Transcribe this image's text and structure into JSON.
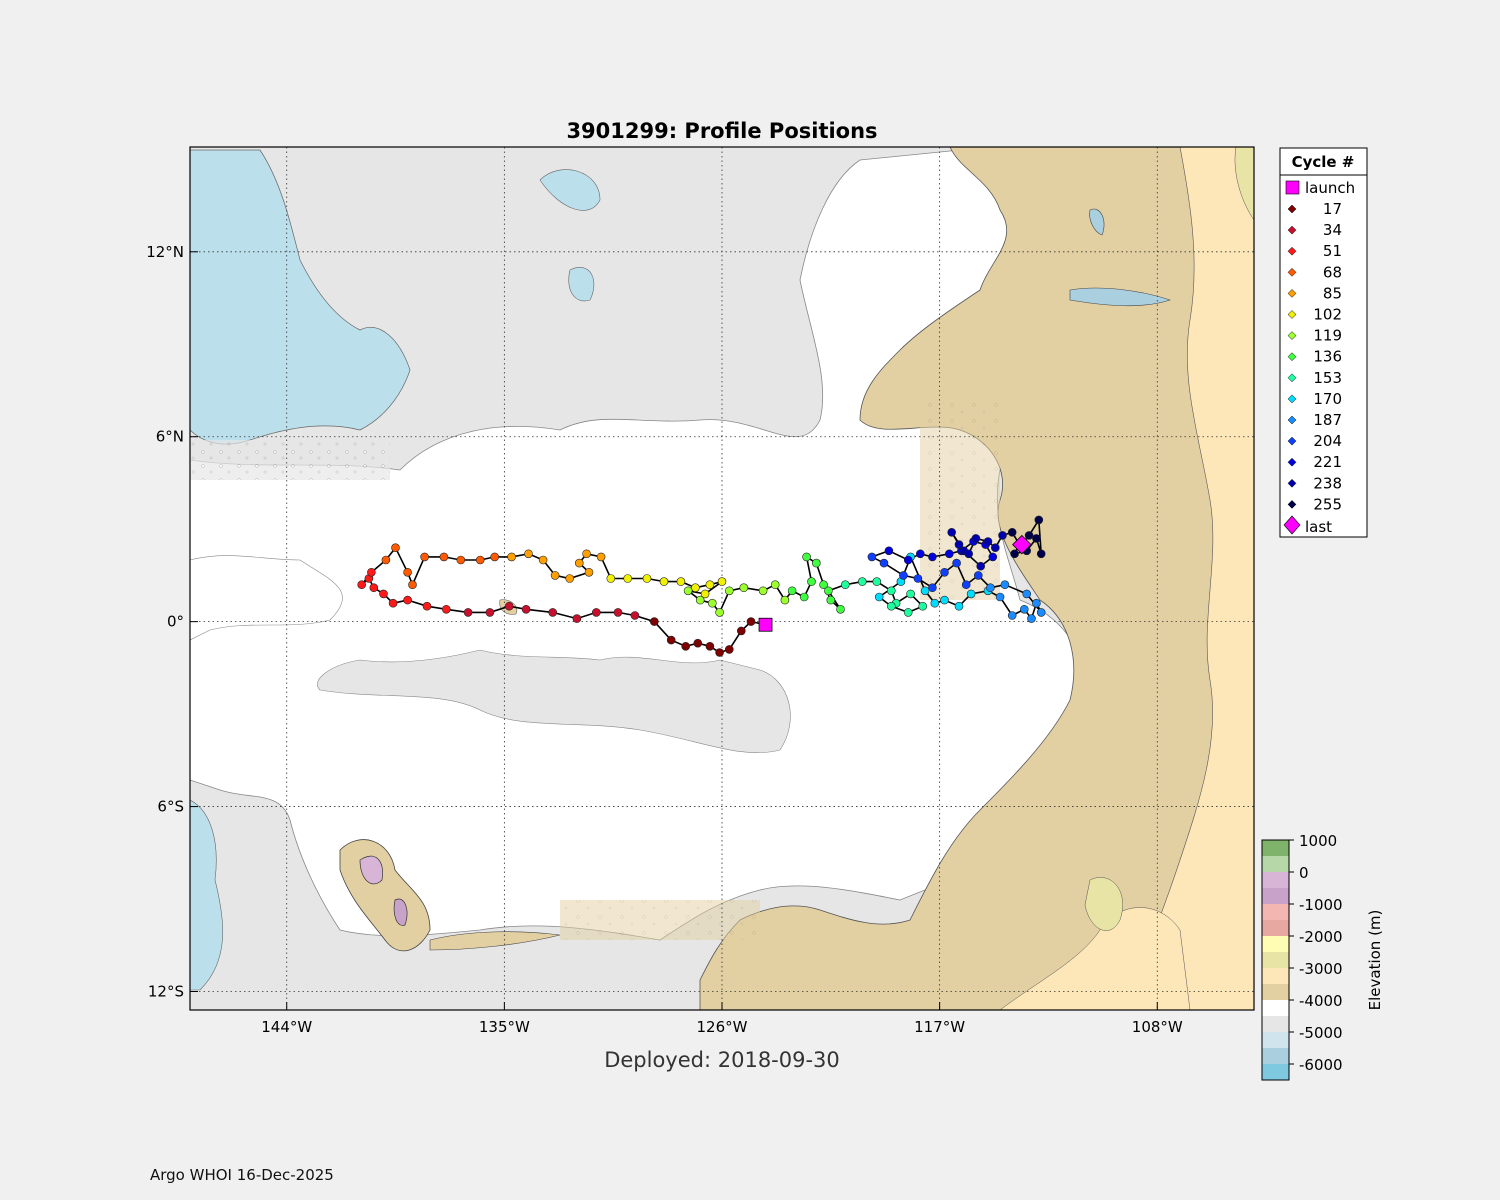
{
  "title": "3901299: Profile Positions",
  "subtitle": "Deployed: 2018-09-30",
  "footer": "Argo WHOI 16-Dec-2025",
  "map": {
    "lon_range": [
      -148,
      -104
    ],
    "lat_range": [
      -12.6,
      15.4
    ],
    "lon_ticks": [
      {
        "value": -144,
        "label": "144°W"
      },
      {
        "value": -135,
        "label": "135°W"
      },
      {
        "value": -126,
        "label": "126°W"
      },
      {
        "value": -117,
        "label": "117°W"
      },
      {
        "value": -108,
        "label": "108°W"
      }
    ],
    "lat_ticks": [
      {
        "value": 12,
        "label": "12°N"
      },
      {
        "value": 6,
        "label": "6°N"
      },
      {
        "value": 0,
        "label": "0°"
      },
      {
        "value": -6,
        "label": "6°S"
      },
      {
        "value": -12,
        "label": "12°S"
      }
    ]
  },
  "legend": {
    "title": "Cycle #",
    "launch_label": "launch",
    "last_label": "last",
    "cycles": [
      {
        "label": "17",
        "color": "#7f0000"
      },
      {
        "label": "34",
        "color": "#c8102e"
      },
      {
        "label": "51",
        "color": "#ff1a1a"
      },
      {
        "label": "68",
        "color": "#ff5a00"
      },
      {
        "label": "85",
        "color": "#ff9f00"
      },
      {
        "label": "102",
        "color": "#f0f000"
      },
      {
        "label": "119",
        "color": "#9cff2e"
      },
      {
        "label": "136",
        "color": "#40ff40"
      },
      {
        "label": "153",
        "color": "#1fffa0"
      },
      {
        "label": "170",
        "color": "#00dcff"
      },
      {
        "label": "187",
        "color": "#1a8cff"
      },
      {
        "label": "204",
        "color": "#1040ff"
      },
      {
        "label": "221",
        "color": "#0000e0"
      },
      {
        "label": "238",
        "color": "#0000b0"
      },
      {
        "label": "255",
        "color": "#00004a"
      }
    ]
  },
  "colorbar": {
    "label": "Elevation (m)",
    "ticks": [
      "1000",
      "0",
      "-1000",
      "-2000",
      "-3000",
      "-4000",
      "-5000",
      "-6000"
    ],
    "colors": [
      "#7fb26a",
      "#b6d7a8",
      "#d8b4d6",
      "#c8a2c8",
      "#f4b6b0",
      "#e6a8a0",
      "#fffcb4",
      "#e8e4a6",
      "#fde6b8",
      "#e2cfa2",
      "#ffffff",
      "#e6e6e6",
      "#d0e4ee",
      "#aad0e0",
      "#7ec8e0"
    ]
  },
  "launch": {
    "lon": -124.2,
    "lat": -0.1
  },
  "last": {
    "lon": -113.6,
    "lat": 2.5
  },
  "track": [
    [
      -124.2,
      -0.1
    ],
    [
      -124.8,
      0.0
    ],
    [
      -125.2,
      -0.3
    ],
    [
      -125.7,
      -0.9
    ],
    [
      -126.1,
      -1.0
    ],
    [
      -126.5,
      -0.8
    ],
    [
      -127.0,
      -0.7
    ],
    [
      -127.5,
      -0.8
    ],
    [
      -128.1,
      -0.6
    ],
    [
      -128.8,
      0.0
    ],
    [
      -129.6,
      0.2
    ],
    [
      -130.3,
      0.3
    ],
    [
      -131.2,
      0.3
    ],
    [
      -132.0,
      0.1
    ],
    [
      -133.0,
      0.3
    ],
    [
      -134.1,
      0.4
    ],
    [
      -134.8,
      0.5
    ],
    [
      -135.6,
      0.3
    ],
    [
      -136.5,
      0.3
    ],
    [
      -137.4,
      0.4
    ],
    [
      -138.2,
      0.5
    ],
    [
      -139.0,
      0.7
    ],
    [
      -139.6,
      0.6
    ],
    [
      -140.0,
      0.9
    ],
    [
      -140.4,
      1.1
    ],
    [
      -140.6,
      1.4
    ],
    [
      -140.9,
      1.2
    ],
    [
      -140.5,
      1.6
    ],
    [
      -139.9,
      2.0
    ],
    [
      -139.5,
      2.4
    ],
    [
      -139.0,
      1.6
    ],
    [
      -138.8,
      1.2
    ],
    [
      -138.3,
      2.1
    ],
    [
      -137.5,
      2.1
    ],
    [
      -136.8,
      2.0
    ],
    [
      -136.0,
      2.0
    ],
    [
      -135.4,
      2.1
    ],
    [
      -134.7,
      2.1
    ],
    [
      -134.0,
      2.2
    ],
    [
      -133.4,
      2.0
    ],
    [
      -132.9,
      1.5
    ],
    [
      -132.3,
      1.4
    ],
    [
      -131.5,
      1.6
    ],
    [
      -131.9,
      1.9
    ],
    [
      -131.6,
      2.2
    ],
    [
      -131.0,
      2.1
    ],
    [
      -130.6,
      1.4
    ],
    [
      -129.9,
      1.4
    ],
    [
      -129.1,
      1.4
    ],
    [
      -128.4,
      1.3
    ],
    [
      -127.7,
      1.3
    ],
    [
      -127.1,
      1.1
    ],
    [
      -126.5,
      1.2
    ],
    [
      -126.0,
      1.3
    ],
    [
      -126.7,
      0.9
    ],
    [
      -127.4,
      1.0
    ],
    [
      -126.9,
      0.7
    ],
    [
      -126.4,
      0.6
    ],
    [
      -126.1,
      0.3
    ],
    [
      -125.7,
      1.0
    ],
    [
      -125.1,
      1.1
    ],
    [
      -124.3,
      1.0
    ],
    [
      -123.8,
      1.2
    ],
    [
      -123.4,
      0.7
    ],
    [
      -123.1,
      1.0
    ],
    [
      -122.6,
      0.8
    ],
    [
      -122.3,
      1.3
    ],
    [
      -122.5,
      2.1
    ],
    [
      -122.1,
      1.9
    ],
    [
      -121.8,
      1.2
    ],
    [
      -121.5,
      0.7
    ],
    [
      -121.1,
      0.4
    ],
    [
      -121.6,
      1.0
    ],
    [
      -120.9,
      1.2
    ],
    [
      -120.2,
      1.3
    ],
    [
      -119.6,
      1.3
    ],
    [
      -119.0,
      1.0
    ],
    [
      -118.8,
      0.6
    ],
    [
      -118.2,
      0.9
    ],
    [
      -117.7,
      0.5
    ],
    [
      -118.3,
      0.3
    ],
    [
      -119.0,
      0.5
    ],
    [
      -119.5,
      0.8
    ],
    [
      -118.6,
      1.3
    ],
    [
      -118.2,
      2.1
    ],
    [
      -117.6,
      1.0
    ],
    [
      -117.2,
      0.6
    ],
    [
      -116.8,
      0.7
    ],
    [
      -116.2,
      0.5
    ],
    [
      -115.7,
      0.9
    ],
    [
      -115.0,
      1.0
    ],
    [
      -114.5,
      0.8
    ],
    [
      -114.0,
      0.2
    ],
    [
      -113.5,
      0.4
    ],
    [
      -113.2,
      0.1
    ],
    [
      -113.0,
      0.6
    ],
    [
      -112.8,
      0.3
    ],
    [
      -113.4,
      0.9
    ],
    [
      -114.3,
      1.2
    ],
    [
      -114.9,
      1.1
    ],
    [
      -115.4,
      1.5
    ],
    [
      -115.9,
      1.2
    ],
    [
      -116.3,
      1.9
    ],
    [
      -116.8,
      1.6
    ],
    [
      -117.3,
      1.1
    ],
    [
      -117.9,
      1.4
    ],
    [
      -118.5,
      1.5
    ],
    [
      -119.3,
      1.9
    ],
    [
      -119.8,
      2.1
    ],
    [
      -119.1,
      2.3
    ],
    [
      -118.3,
      2.0
    ],
    [
      -117.8,
      2.2
    ],
    [
      -117.3,
      2.1
    ],
    [
      -116.6,
      2.2
    ],
    [
      -116.1,
      2.3
    ],
    [
      -115.6,
      2.6
    ],
    [
      -115.1,
      2.5
    ],
    [
      -114.8,
      2.1
    ],
    [
      -115.3,
      1.8
    ],
    [
      -116.0,
      2.3
    ],
    [
      -116.5,
      2.9
    ],
    [
      -116.2,
      2.5
    ],
    [
      -115.8,
      2.2
    ],
    [
      -115.5,
      2.7
    ],
    [
      -115.0,
      2.6
    ],
    [
      -114.7,
      2.4
    ],
    [
      -114.4,
      2.8
    ],
    [
      -114.0,
      2.9
    ],
    [
      -113.7,
      2.5
    ],
    [
      -113.9,
      2.2
    ],
    [
      -113.4,
      2.3
    ],
    [
      -113.0,
      2.7
    ],
    [
      -112.8,
      2.2
    ],
    [
      -112.9,
      3.3
    ],
    [
      -113.3,
      2.8
    ],
    [
      -113.6,
      2.5
    ]
  ]
}
